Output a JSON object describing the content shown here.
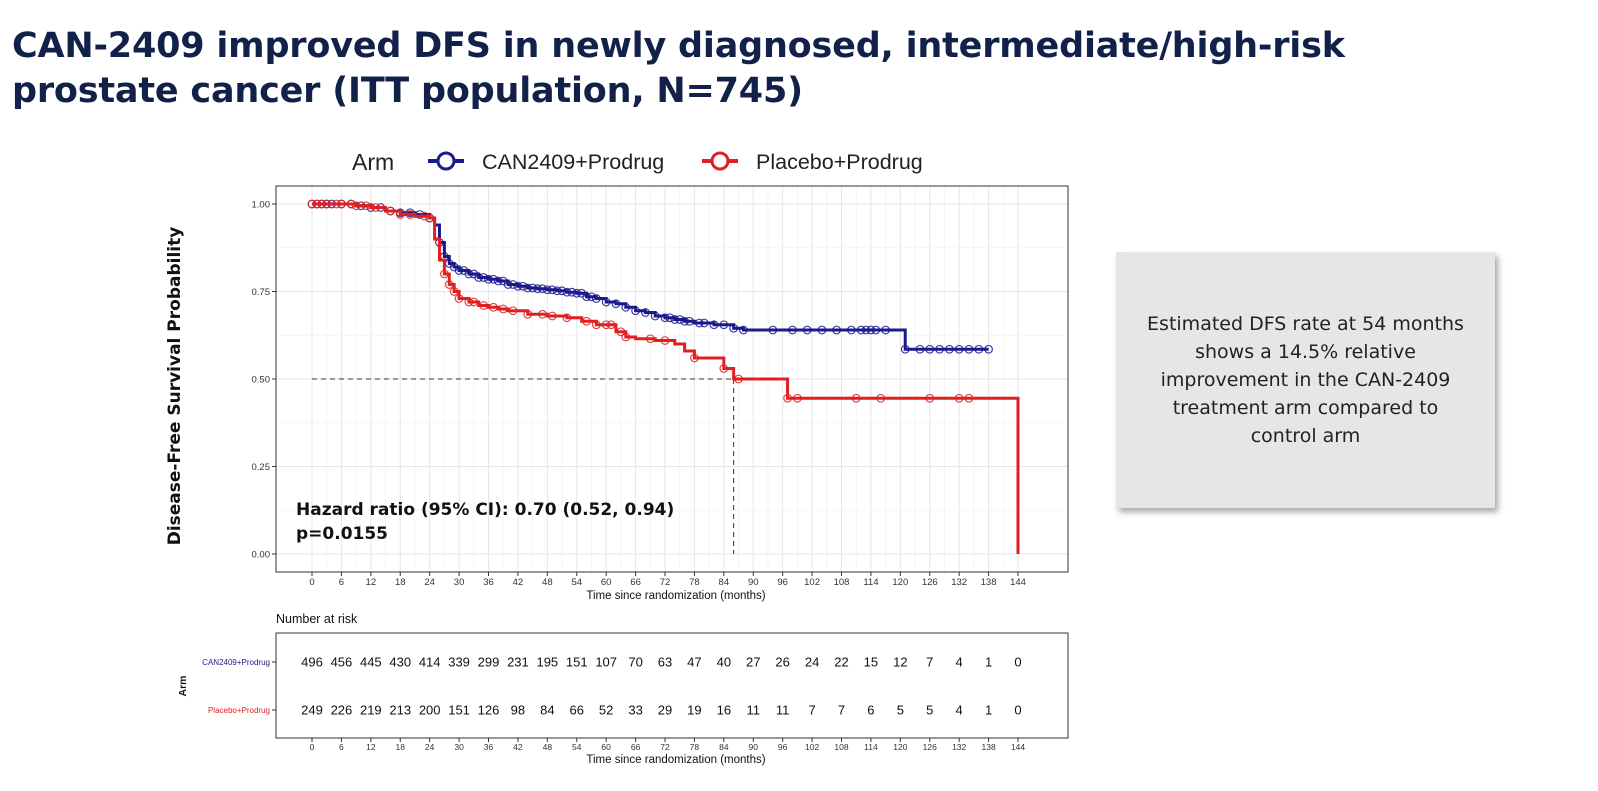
{
  "slide": {
    "title": "CAN-2409 improved DFS in newly diagnosed, intermediate/high-risk prostate cancer (ITT population, N=745)",
    "callout": "Estimated DFS rate at 54 months shows a 14.5% relative improvement in the CAN-2409 treatment arm compared to control arm"
  },
  "chart_data": [
    {
      "type": "line",
      "ylabel": "Disease-Free Survival Probability",
      "xlabel": "Time since randomization (months)",
      "xlim": [
        0,
        144
      ],
      "ylim": [
        0,
        1
      ],
      "x_ticks": [
        0,
        6,
        12,
        18,
        24,
        30,
        36,
        42,
        48,
        54,
        60,
        66,
        72,
        78,
        84,
        90,
        96,
        102,
        108,
        114,
        120,
        126,
        132,
        138,
        144
      ],
      "y_ticks": [
        "0.00",
        "0.25",
        "0.50",
        "0.75",
        "1.00"
      ],
      "grid": true,
      "legend": {
        "position": "top",
        "title": "Arm"
      },
      "annotations": [
        {
          "text": "Hazard ratio (95% CI): 0.70 (0.52, 0.94)"
        },
        {
          "text": "p=0.0155"
        }
      ],
      "median_reference": {
        "y": 0.5,
        "x": 86
      },
      "series": [
        {
          "name": "CAN2409+Prodrug",
          "color": "#1a1a8c",
          "x": [
            0,
            3,
            6,
            9,
            12,
            15,
            18,
            21,
            24,
            25,
            26,
            27,
            28,
            29,
            30,
            32,
            34,
            36,
            38,
            40,
            42,
            44,
            46,
            48,
            50,
            52,
            54,
            56,
            58,
            60,
            62,
            64,
            66,
            68,
            70,
            72,
            74,
            76,
            78,
            80,
            82,
            84,
            86,
            88,
            90,
            96,
            102,
            108,
            114,
            118,
            121,
            126,
            132,
            138
          ],
          "y": [
            1.0,
            1.0,
            1.0,
            0.995,
            0.99,
            0.98,
            0.975,
            0.97,
            0.96,
            0.94,
            0.89,
            0.85,
            0.83,
            0.82,
            0.81,
            0.8,
            0.79,
            0.785,
            0.78,
            0.77,
            0.765,
            0.76,
            0.758,
            0.755,
            0.752,
            0.748,
            0.745,
            0.735,
            0.73,
            0.72,
            0.715,
            0.705,
            0.695,
            0.69,
            0.68,
            0.675,
            0.67,
            0.665,
            0.66,
            0.66,
            0.655,
            0.655,
            0.645,
            0.64,
            0.64,
            0.64,
            0.64,
            0.64,
            0.64,
            0.64,
            0.585,
            0.585,
            0.585,
            0.585
          ],
          "censor_x": [
            0,
            1,
            2,
            3,
            4,
            6,
            8,
            10,
            12,
            14,
            16,
            18,
            20,
            22,
            24,
            26,
            27,
            28,
            29,
            30,
            31,
            32,
            33,
            34,
            35,
            36,
            37,
            38,
            39,
            40,
            41,
            42,
            43,
            44,
            45,
            46,
            47,
            48,
            49,
            50,
            51,
            52,
            53,
            54,
            55,
            56,
            57,
            58,
            60,
            62,
            64,
            66,
            68,
            70,
            72,
            73,
            74,
            75,
            76,
            77,
            79,
            80,
            82,
            84,
            86,
            88,
            94,
            98,
            101,
            104,
            107,
            110,
            112,
            113,
            114,
            115,
            117,
            121,
            124,
            126,
            128,
            130,
            132,
            134,
            136,
            138
          ]
        },
        {
          "name": "Placebo+Prodrug",
          "color": "#e02020",
          "x": [
            0,
            3,
            6,
            9,
            12,
            15,
            18,
            21,
            24,
            25,
            26,
            27,
            28,
            29,
            30,
            32,
            34,
            36,
            38,
            40,
            44,
            48,
            52,
            55,
            58,
            62,
            64,
            66,
            70,
            74,
            76,
            78,
            84,
            86,
            97,
            144
          ],
          "y": [
            1.0,
            1.0,
            1.0,
            0.995,
            0.99,
            0.98,
            0.97,
            0.965,
            0.96,
            0.9,
            0.84,
            0.8,
            0.77,
            0.75,
            0.73,
            0.72,
            0.71,
            0.705,
            0.7,
            0.695,
            0.685,
            0.68,
            0.675,
            0.665,
            0.655,
            0.635,
            0.62,
            0.615,
            0.61,
            0.6,
            0.58,
            0.56,
            0.53,
            0.5,
            0.445,
            0.0
          ],
          "censor_x": [
            0,
            1,
            2,
            3,
            5,
            6,
            8,
            9,
            11,
            13,
            16,
            18,
            20,
            23,
            24,
            27,
            28,
            29,
            30,
            32,
            33,
            35,
            37,
            39,
            41,
            44,
            47,
            49,
            52,
            56,
            58,
            60,
            61,
            63,
            64,
            69,
            72,
            78,
            84,
            87,
            97,
            99,
            111,
            116,
            126,
            132,
            134
          ]
        }
      ]
    },
    {
      "type": "table",
      "title": "Number at risk",
      "ylabel": "Arm",
      "xlabel": "Time since randomization (months)",
      "x_ticks": [
        0,
        6,
        12,
        18,
        24,
        30,
        36,
        42,
        48,
        54,
        60,
        66,
        72,
        78,
        84,
        90,
        96,
        102,
        108,
        114,
        120,
        126,
        132,
        138,
        144
      ],
      "rows": [
        {
          "name": "CAN2409+Prodrug",
          "color": "#1a1a8c",
          "values": [
            496,
            456,
            445,
            430,
            414,
            339,
            299,
            231,
            195,
            151,
            107,
            70,
            63,
            47,
            40,
            27,
            26,
            24,
            22,
            15,
            12,
            7,
            4,
            1,
            0
          ]
        },
        {
          "name": "Placebo+Prodrug",
          "color": "#e02020",
          "values": [
            249,
            226,
            219,
            213,
            200,
            151,
            126,
            98,
            84,
            66,
            52,
            33,
            29,
            19,
            16,
            11,
            11,
            7,
            7,
            6,
            5,
            5,
            4,
            1,
            0
          ]
        }
      ]
    }
  ]
}
